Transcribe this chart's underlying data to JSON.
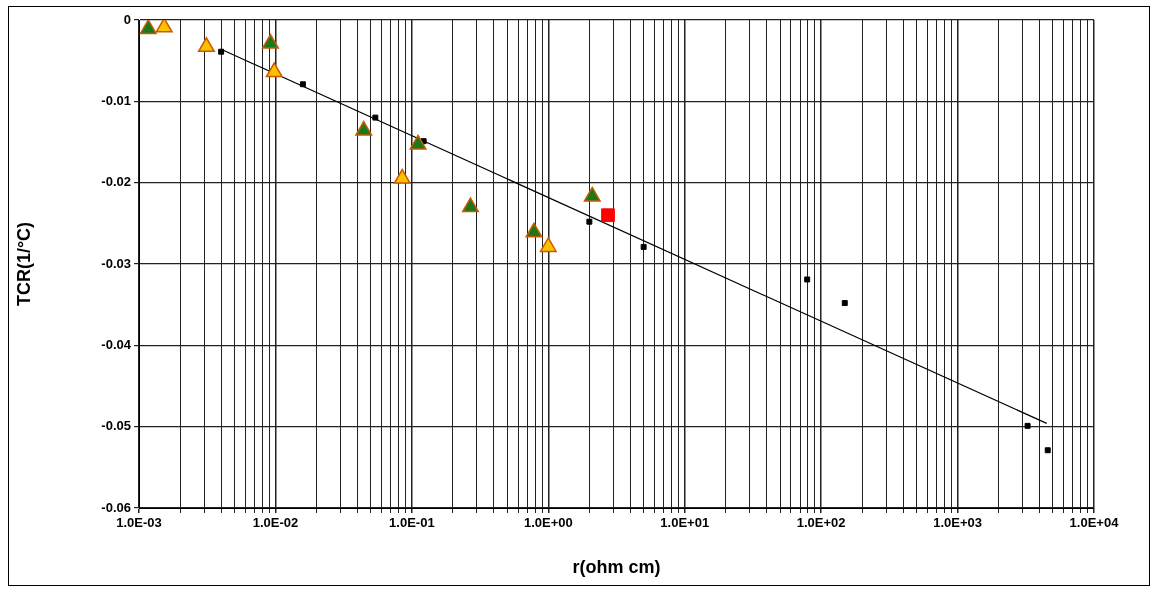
{
  "chart_data": {
    "type": "scatter",
    "xlabel": "r(ohm cm)",
    "ylabel": "TCR(1/°C)",
    "log": "x",
    "grid": true,
    "legend": false,
    "xlim": [
      0.001,
      10000
    ],
    "ylim": [
      -0.06,
      0
    ],
    "xticks": [
      {
        "value": 0.001,
        "label": "1.0E-03"
      },
      {
        "value": 0.002,
        "label": null
      },
      {
        "value": 0.003,
        "label": null
      },
      {
        "value": 0.004,
        "label": null
      },
      {
        "value": 0.005,
        "label": null
      },
      {
        "value": 0.006,
        "label": null
      },
      {
        "value": 0.007,
        "label": null
      },
      {
        "value": 0.008,
        "label": null
      },
      {
        "value": 0.009,
        "label": null
      },
      {
        "value": 0.01,
        "label": "1.0E-02"
      },
      {
        "value": 0.02,
        "label": null
      },
      {
        "value": 0.03,
        "label": null
      },
      {
        "value": 0.04,
        "label": null
      },
      {
        "value": 0.05,
        "label": null
      },
      {
        "value": 0.06,
        "label": null
      },
      {
        "value": 0.07,
        "label": null
      },
      {
        "value": 0.08,
        "label": null
      },
      {
        "value": 0.09,
        "label": null
      },
      {
        "value": 0.1,
        "label": "1.0E-01"
      },
      {
        "value": 0.2,
        "label": null
      },
      {
        "value": 0.3,
        "label": null
      },
      {
        "value": 0.4,
        "label": null
      },
      {
        "value": 0.5,
        "label": null
      },
      {
        "value": 0.6,
        "label": null
      },
      {
        "value": 0.7,
        "label": null
      },
      {
        "value": 0.8,
        "label": null
      },
      {
        "value": 0.9,
        "label": null
      },
      {
        "value": 1,
        "label": "1.0E+00"
      },
      {
        "value": 2,
        "label": null
      },
      {
        "value": 3,
        "label": null
      },
      {
        "value": 4,
        "label": null
      },
      {
        "value": 5,
        "label": null
      },
      {
        "value": 6,
        "label": null
      },
      {
        "value": 7,
        "label": null
      },
      {
        "value": 8,
        "label": null
      },
      {
        "value": 9,
        "label": null
      },
      {
        "value": 10,
        "label": "1.0E+01"
      },
      {
        "value": 20,
        "label": null
      },
      {
        "value": 30,
        "label": null
      },
      {
        "value": 40,
        "label": null
      },
      {
        "value": 50,
        "label": null
      },
      {
        "value": 60,
        "label": null
      },
      {
        "value": 70,
        "label": null
      },
      {
        "value": 80,
        "label": null
      },
      {
        "value": 90,
        "label": null
      },
      {
        "value": 100,
        "label": "1.0E+02"
      },
      {
        "value": 200,
        "label": null
      },
      {
        "value": 300,
        "label": null
      },
      {
        "value": 400,
        "label": null
      },
      {
        "value": 500,
        "label": null
      },
      {
        "value": 600,
        "label": null
      },
      {
        "value": 700,
        "label": null
      },
      {
        "value": 800,
        "label": null
      },
      {
        "value": 900,
        "label": null
      },
      {
        "value": 1000,
        "label": "1.0E+03"
      },
      {
        "value": 2000,
        "label": null
      },
      {
        "value": 3000,
        "label": null
      },
      {
        "value": 4000,
        "label": null
      },
      {
        "value": 5000,
        "label": null
      },
      {
        "value": 6000,
        "label": null
      },
      {
        "value": 7000,
        "label": null
      },
      {
        "value": 8000,
        "label": null
      },
      {
        "value": 9000,
        "label": null
      },
      {
        "value": 10000,
        "label": "1.0E+04"
      }
    ],
    "yticks": [
      -0.06,
      -0.05,
      -0.04,
      -0.03,
      -0.02,
      -0.01,
      0
    ],
    "series": [
      {
        "type": "line",
        "color": "#000000",
        "marker": "none",
        "line_style": "solid",
        "x": [
          0.004,
          4500
        ],
        "values": [
          -0.0036,
          -0.0496
        ]
      },
      {
        "type": "scatter",
        "color": "#000000",
        "marker": "square",
        "x": [
          0.004,
          0.0159,
          0.054,
          0.122,
          2.0,
          5.0,
          79,
          149,
          3260,
          4580
        ],
        "values": [
          -0.0039,
          -0.0079,
          -0.012,
          -0.0149,
          -0.0248,
          -0.0279,
          -0.0319,
          -0.0348,
          -0.0499,
          -0.0529
        ]
      },
      {
        "type": "scatter",
        "color": "#ffc000",
        "marker": "triangle",
        "x": [
          0.00153,
          0.00312,
          0.0098,
          0.085,
          1.0
        ],
        "values": [
          -0.0009,
          -0.0033,
          -0.0064,
          -0.0195,
          -0.0279
        ]
      },
      {
        "type": "scatter",
        "color": "#1a7a1a",
        "marker": "triangle",
        "x": [
          0.00117,
          0.0092,
          0.0444,
          0.111,
          0.269,
          0.785,
          2.1
        ],
        "values": [
          -0.0011,
          -0.0029,
          -0.0136,
          -0.0153,
          -0.023,
          -0.0261,
          -0.0217
        ]
      },
      {
        "type": "scatter",
        "color": "#ff0000",
        "marker": "square",
        "x": [
          2.74
        ],
        "values": [
          -0.024
        ]
      }
    ]
  }
}
